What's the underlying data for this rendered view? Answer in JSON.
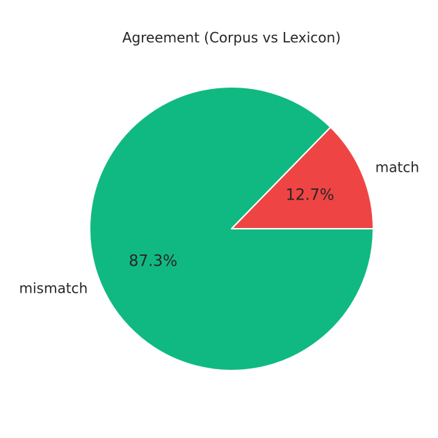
{
  "chart_data": {
    "type": "pie",
    "title": "Agreement (Corpus vs Lexicon)",
    "slices": [
      {
        "label": "match",
        "value": 12.7,
        "pct_label": "12.7%",
        "color": "#ef4444"
      },
      {
        "label": "mismatch",
        "value": 87.3,
        "pct_label": "87.3%",
        "color": "#10b981"
      }
    ],
    "start_angle_deg": 0,
    "direction": "counterclockwise",
    "edge_color": "#ffffff",
    "legend": "none"
  }
}
